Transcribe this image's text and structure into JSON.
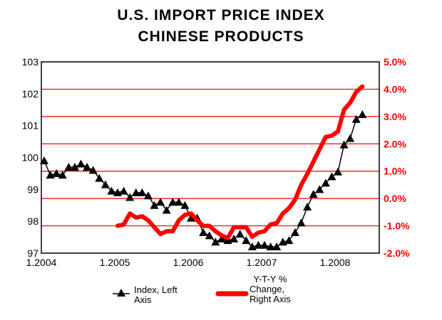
{
  "chart_data": {
    "type": "line",
    "title": [
      "U.S. IMPORT PRICE INDEX",
      "CHINESE PRODUCTS"
    ],
    "x_ticks": [
      "1.2004",
      "1.2005",
      "1.2006",
      "1.2007",
      "1.2008"
    ],
    "left_axis": {
      "ylim": [
        97,
        103
      ],
      "ticks": [
        "97",
        "98",
        "99",
        "100",
        "101",
        "102",
        "103"
      ]
    },
    "right_axis": {
      "ylim": [
        -2,
        5
      ],
      "ticks": [
        "-2.0%",
        "-1.0%",
        "0.0%",
        "1.0%",
        "2.0%",
        "3.0%",
        "4.0%",
        "5.0%"
      ]
    },
    "grid": true,
    "series": [
      {
        "name": "Index, Left Axis",
        "axis": "left",
        "start": "2004-01",
        "color": "#000000",
        "values": [
          99.9,
          99.45,
          99.5,
          99.45,
          99.7,
          99.7,
          99.8,
          99.7,
          99.6,
          99.35,
          99.15,
          98.95,
          98.9,
          98.95,
          98.75,
          98.9,
          98.9,
          98.8,
          98.5,
          98.6,
          98.35,
          98.6,
          98.6,
          98.5,
          98.1,
          98.1,
          97.65,
          97.55,
          97.35,
          97.45,
          97.4,
          97.45,
          97.6,
          97.4,
          97.2,
          97.25,
          97.25,
          97.2,
          97.2,
          97.35,
          97.4,
          97.65,
          97.95,
          98.45,
          98.85,
          99.0,
          99.2,
          99.4,
          99.55,
          100.4,
          100.6,
          101.2,
          101.35
        ]
      },
      {
        "name": "Y-T-Y % Change, Right Axis",
        "axis": "right",
        "start": "2005-01",
        "color": "#ff0000",
        "values": [
          -1.0,
          -0.95,
          -0.55,
          -0.7,
          -0.65,
          -0.8,
          -1.05,
          -1.3,
          -1.2,
          -1.2,
          -0.8,
          -0.6,
          -0.55,
          -0.8,
          -1.0,
          -1.0,
          -1.2,
          -1.35,
          -1.45,
          -1.05,
          -1.05,
          -1.05,
          -1.4,
          -1.25,
          -1.2,
          -0.95,
          -0.9,
          -0.55,
          -0.35,
          -0.05,
          0.5,
          0.9,
          1.35,
          1.8,
          2.25,
          2.3,
          2.45,
          3.25,
          3.5,
          3.9,
          4.1
        ]
      }
    ],
    "legend": {
      "placement": "bottom",
      "index_label": [
        "Index, Left",
        "Axis"
      ],
      "yoy_label": [
        "Y-T-Y %",
        "Change,",
        "Right Axis"
      ]
    }
  }
}
